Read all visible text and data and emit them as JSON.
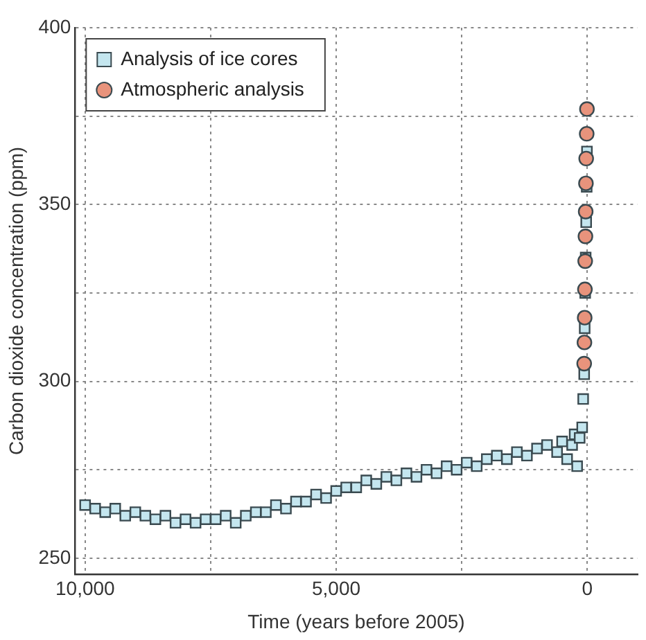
{
  "chart_data": {
    "type": "scatter",
    "xlabel": "Time (years before 2005)",
    "ylabel": "Carbon dioxide concentration (ppm)",
    "xlim": [
      10200,
      -1000
    ],
    "xticks": [
      {
        "value": 10000,
        "label": "10,000"
      },
      {
        "value": 7500,
        "label": null
      },
      {
        "value": 5000,
        "label": "5,000"
      },
      {
        "value": 2500,
        "label": null
      },
      0
    ],
    "ylim": [
      245.5,
      400
    ],
    "yticks": [
      250,
      {
        "value": 275,
        "label": null
      },
      300,
      {
        "value": 325,
        "label": null
      },
      350,
      {
        "value": 375,
        "label": null
      },
      400
    ],
    "grid": true,
    "line_style": "dotted",
    "legend": "top left",
    "series": [
      {
        "name": "Analysis of ice cores",
        "color": "#c4e6ef",
        "marker": "square",
        "x": [
          10000,
          9800,
          9600,
          9400,
          9200,
          9000,
          8800,
          8600,
          8400,
          8200,
          8000,
          7800,
          7600,
          7400,
          7200,
          7000,
          6800,
          6600,
          6400,
          6200,
          6000,
          5800,
          5600,
          5400,
          5200,
          5000,
          4800,
          4600,
          4400,
          4200,
          4000,
          3800,
          3600,
          3400,
          3200,
          3000,
          2800,
          2600,
          2400,
          2200,
          2000,
          1800,
          1600,
          1400,
          1200,
          1000,
          800,
          600,
          500,
          400,
          300,
          250,
          200,
          150,
          100,
          80,
          60,
          50,
          40,
          30,
          20,
          10,
          5
        ],
        "values": [
          265,
          264,
          263,
          264,
          262,
          263,
          262,
          261,
          262,
          260,
          261,
          260,
          261,
          261,
          262,
          260,
          262,
          263,
          263,
          265,
          264,
          266,
          266,
          268,
          267,
          269,
          270,
          270,
          272,
          271,
          273,
          272,
          274,
          273,
          275,
          274,
          276,
          275,
          277,
          276,
          278,
          279,
          278,
          280,
          279,
          281,
          282,
          280,
          283,
          278,
          282,
          285,
          276,
          284,
          287,
          295,
          302,
          315,
          325,
          335,
          345,
          355,
          365
        ]
      },
      {
        "name": "Atmospheric analysis",
        "color": "#e8937c",
        "marker": "circle",
        "x": [
          60,
          55,
          50,
          45,
          40,
          35,
          30,
          25,
          20,
          10,
          5
        ],
        "values": [
          305,
          311,
          318,
          326,
          334,
          341,
          348,
          356,
          363,
          370,
          377
        ]
      }
    ]
  }
}
